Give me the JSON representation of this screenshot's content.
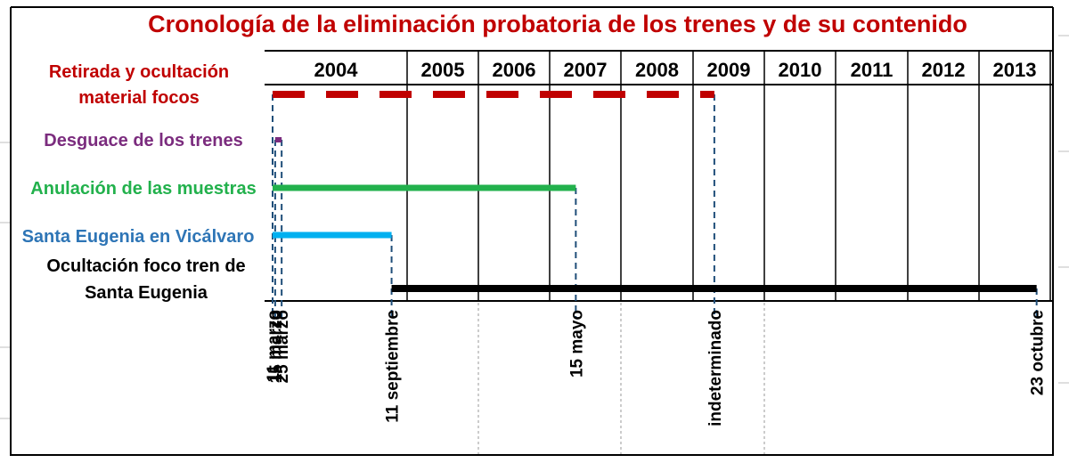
{
  "title": "Cronología de la eliminación probatoria de los trenes y de su contenido",
  "colors": {
    "title": "#c00000",
    "focos": "#c00000",
    "desguace": "#7b2c7e",
    "muestras": "#22b14c",
    "santa": "#00b0f0",
    "santa_label": "#2e75b6",
    "ocultacion": "#000000",
    "guide": "#1f4e79"
  },
  "years": [
    "2004",
    "2005",
    "2006",
    "2007",
    "2008",
    "2009",
    "2010",
    "2011",
    "2012",
    "2013"
  ],
  "rows": [
    {
      "key": "focos",
      "label_lines": [
        "Retirada y ocultación",
        "material focos"
      ],
      "start": "2004-03-11",
      "end": "indeterminado",
      "end_date": "2009-04-20",
      "style": "dashed"
    },
    {
      "key": "desguace",
      "label_lines": [
        "Desguace de los  trenes"
      ],
      "start": "2004-03-15",
      "end": "2004-03-25",
      "style": "solid"
    },
    {
      "key": "muestras",
      "label_lines": [
        "Anulación de las muestras"
      ],
      "start": "2004-03-11",
      "end": "2007-05-15",
      "style": "solid"
    },
    {
      "key": "santa",
      "label_lines": [
        "Santa Eugenia en Vicálvaro"
      ],
      "start": "2004-03-11",
      "end": "2004-09-11",
      "style": "solid"
    },
    {
      "key": "ocultacion",
      "label_lines": [
        "Ocultación foco tren de",
        "Santa Eugenia"
      ],
      "start": "2004-09-11",
      "end": "2013-10-23",
      "style": "solid"
    }
  ],
  "date_labels": [
    {
      "text": "11 marzo",
      "date": "2004-03-11"
    },
    {
      "text": "15 marzo",
      "date": "2004-03-15"
    },
    {
      "text": "25 marzo",
      "date": "2004-03-25"
    },
    {
      "text": "11 septiembre",
      "date": "2004-09-11"
    },
    {
      "text": "15 mayo",
      "date": "2007-05-15"
    },
    {
      "text": "indeterminado",
      "date": "2009-04-20"
    },
    {
      "text": "23 octubre",
      "date": "2013-10-23"
    }
  ]
}
